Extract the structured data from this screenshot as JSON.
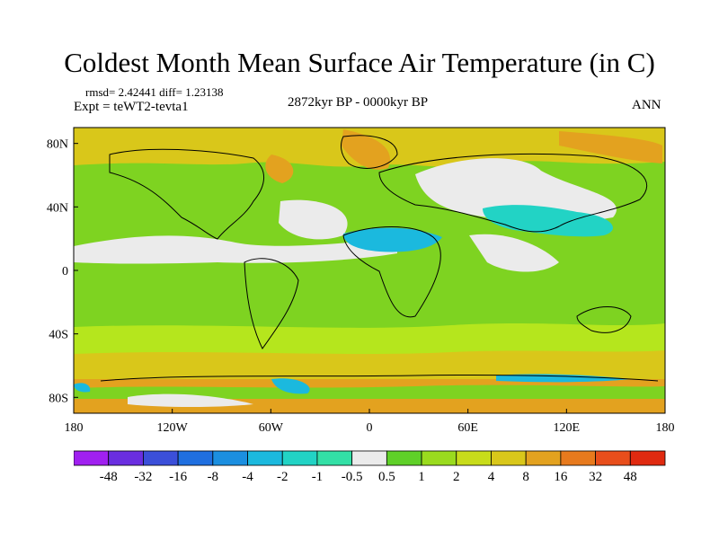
{
  "title": "Coldest Month Mean Surface Air Temperature (in C)",
  "stats": "rmsd= 2.42441 diff= 1.23138",
  "experiment": "Expt = teWT2-tevta1",
  "period": "2872kyr BP - 0000kyr BP",
  "season": "ANN",
  "map": {
    "lon_range": [
      -180,
      180
    ],
    "lat_range": [
      -90,
      90
    ],
    "lon_ticks": [
      "180",
      "120W",
      "60W",
      "0",
      "60E",
      "120E",
      "180"
    ],
    "lat_ticks": [
      "80N",
      "40N",
      "0",
      "40S",
      "80S"
    ],
    "fill_regions": [
      {
        "category": "1 to 2",
        "color": "#7ED321"
      },
      {
        "category": "2 to 4",
        "color": "#B5E61D"
      },
      {
        "category": "-0.5 to 0.5",
        "color": "#EBEBEB"
      },
      {
        "category": "-2 to -1",
        "color": "#22D3C5"
      },
      {
        "category": "-4 to -2",
        "color": "#1BB9DE"
      },
      {
        "category": "4 to 8",
        "color": "#D9C71A"
      },
      {
        "category": "8 to 16",
        "color": "#E3A21F"
      },
      {
        "category": "16 to 32",
        "color": "#E77A1D"
      }
    ]
  },
  "colorbar": {
    "labels": [
      "-48",
      "-32",
      "-16",
      "-8",
      "-4",
      "-2",
      "-1",
      "-0.5",
      "0.5",
      "1",
      "2",
      "4",
      "8",
      "16",
      "32",
      "48"
    ],
    "colors": [
      "#A020F0",
      "#6A2EE0",
      "#3B4FD9",
      "#1F6FE0",
      "#1B8FE0",
      "#1BB9DE",
      "#22D3C5",
      "#33E0A6",
      "#EBEBEB",
      "#5FD028",
      "#9ADB1E",
      "#C8DC1A",
      "#D9C71A",
      "#E3A21F",
      "#E77A1D",
      "#E84E1B",
      "#E02A10"
    ]
  }
}
